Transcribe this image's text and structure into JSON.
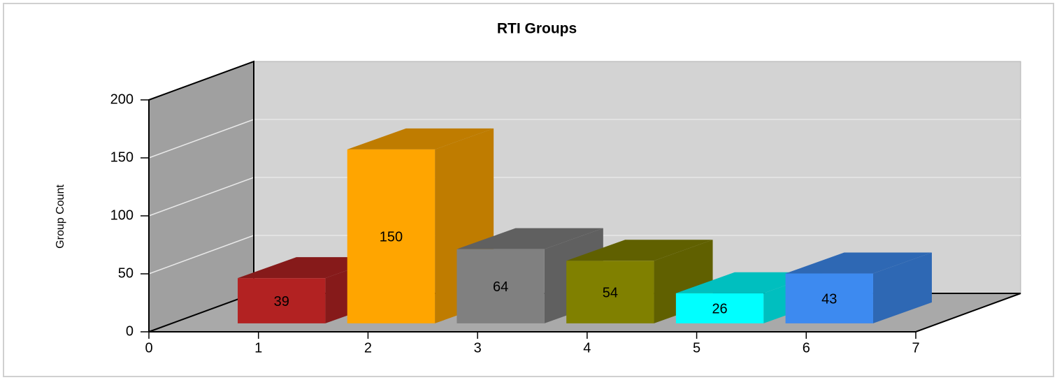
{
  "chart_data": {
    "type": "bar3d",
    "title": "RTI Groups",
    "y_label": "Group Count",
    "x": [
      1,
      2,
      3,
      4,
      5,
      6
    ],
    "values": [
      39,
      150,
      64,
      54,
      26,
      43
    ],
    "colors": [
      "#b22222",
      "#ffa500",
      "#808080",
      "#808000",
      "#00ffff",
      "#3d8af0"
    ],
    "xlim": [
      0,
      7
    ],
    "xticks": [
      0,
      1,
      2,
      3,
      4,
      5,
      6,
      7
    ],
    "ylim": [
      0,
      200
    ],
    "yticks": [
      0,
      50,
      100,
      150,
      200
    ],
    "grid": true
  }
}
